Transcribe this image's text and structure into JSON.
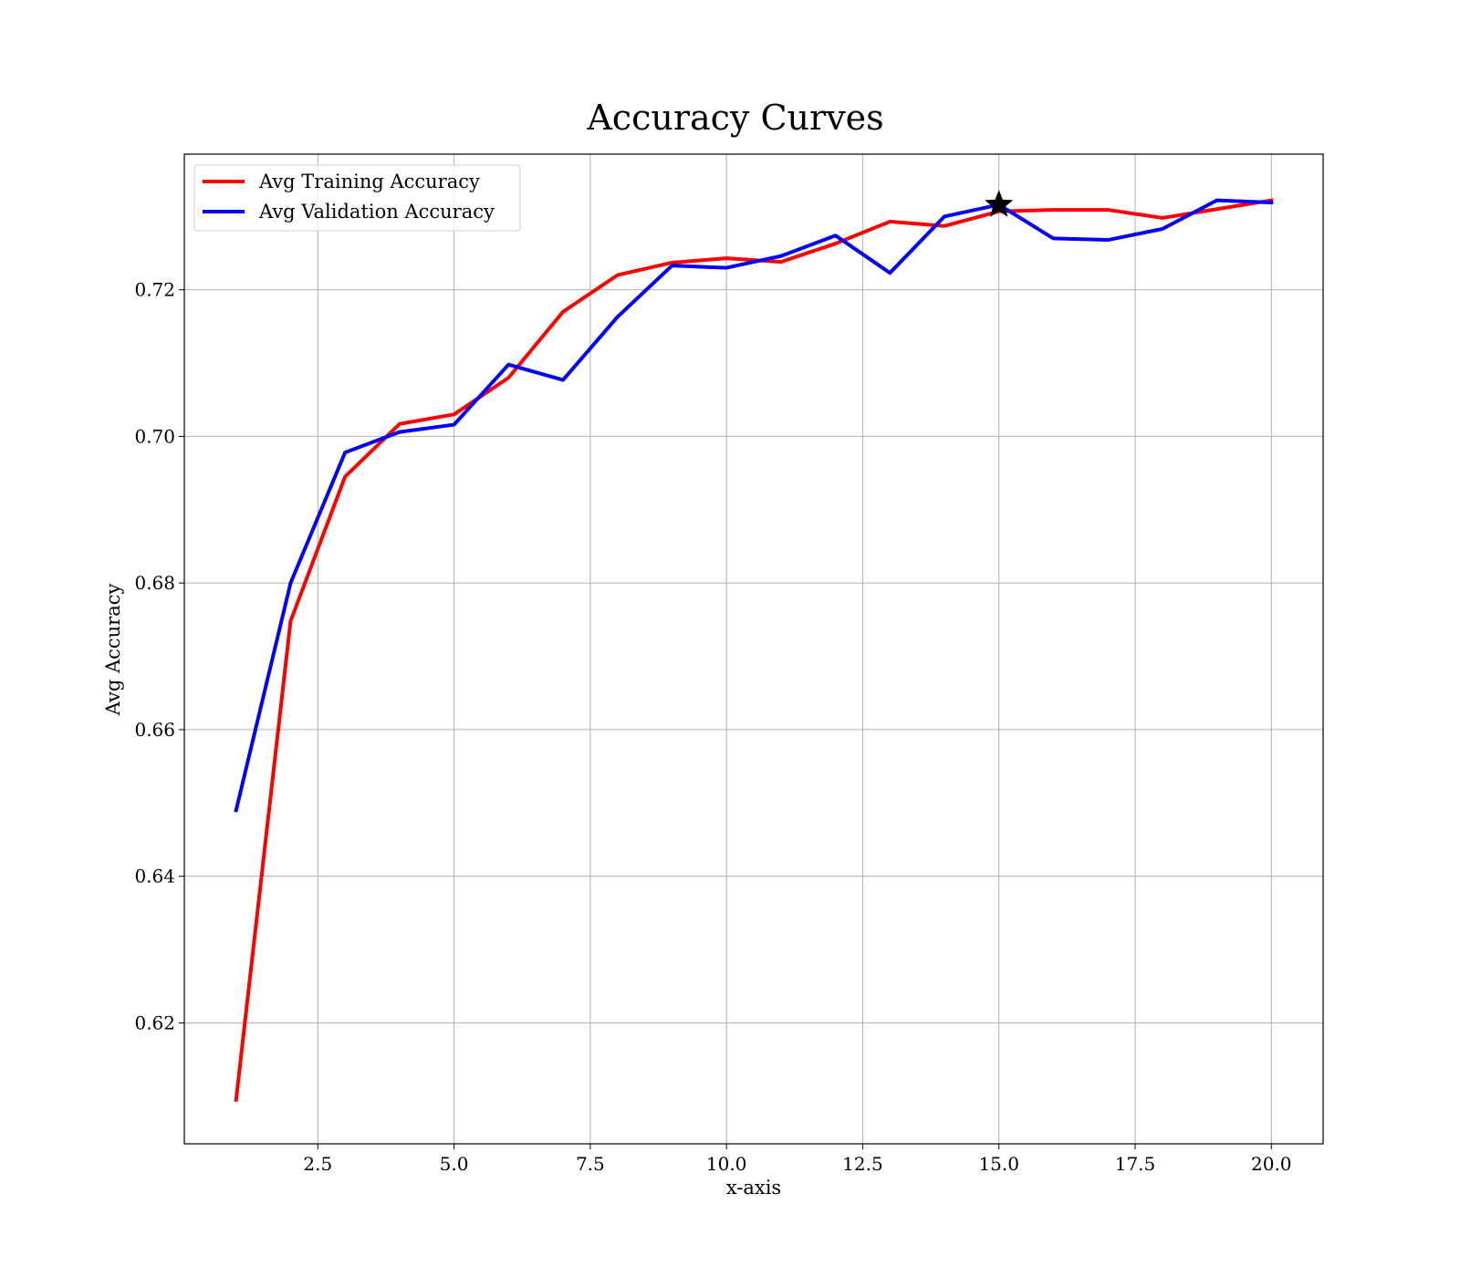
{
  "chart_data": {
    "type": "line",
    "title": "Accuracy Curves",
    "xlabel": "x-axis",
    "ylabel": "Avg Accuracy",
    "xlim": [
      0.05,
      20.95
    ],
    "ylim": [
      0.6035,
      0.7385
    ],
    "x_ticks": [
      2.5,
      5.0,
      7.5,
      10.0,
      12.5,
      15.0,
      17.5,
      20.0
    ],
    "x_tick_labels": [
      "2.5",
      "5.0",
      "7.5",
      "10.0",
      "12.5",
      "15.0",
      "17.5",
      "20.0"
    ],
    "y_ticks": [
      0.62,
      0.64,
      0.66,
      0.68,
      0.7,
      0.72
    ],
    "y_tick_labels": [
      "0.62",
      "0.64",
      "0.66",
      "0.68",
      "0.70",
      "0.72"
    ],
    "grid": true,
    "legend_position": "upper-left",
    "x": [
      1,
      2,
      3,
      4,
      5,
      6,
      7,
      8,
      9,
      10,
      11,
      12,
      13,
      14,
      15,
      16,
      17,
      18,
      19,
      20
    ],
    "series": [
      {
        "name": "Avg Training Accuracy",
        "color": "#ff0000",
        "values": [
          0.6095,
          0.6748,
          0.6945,
          0.7017,
          0.703,
          0.708,
          0.717,
          0.722,
          0.7237,
          0.7243,
          0.7238,
          0.7263,
          0.7293,
          0.7287,
          0.7307,
          0.7309,
          0.7309,
          0.7298,
          0.731,
          0.7322
        ]
      },
      {
        "name": "Avg Validation Accuracy",
        "color": "#0000ff",
        "values": [
          0.649,
          0.68,
          0.6978,
          0.7006,
          0.7016,
          0.7098,
          0.7077,
          0.7163,
          0.7233,
          0.723,
          0.7246,
          0.7274,
          0.7223,
          0.73,
          0.7316,
          0.727,
          0.7268,
          0.7283,
          0.7322,
          0.7319
        ]
      }
    ],
    "marker": {
      "shape": "star",
      "color": "#000000",
      "x": 15,
      "y": 0.7316
    }
  }
}
